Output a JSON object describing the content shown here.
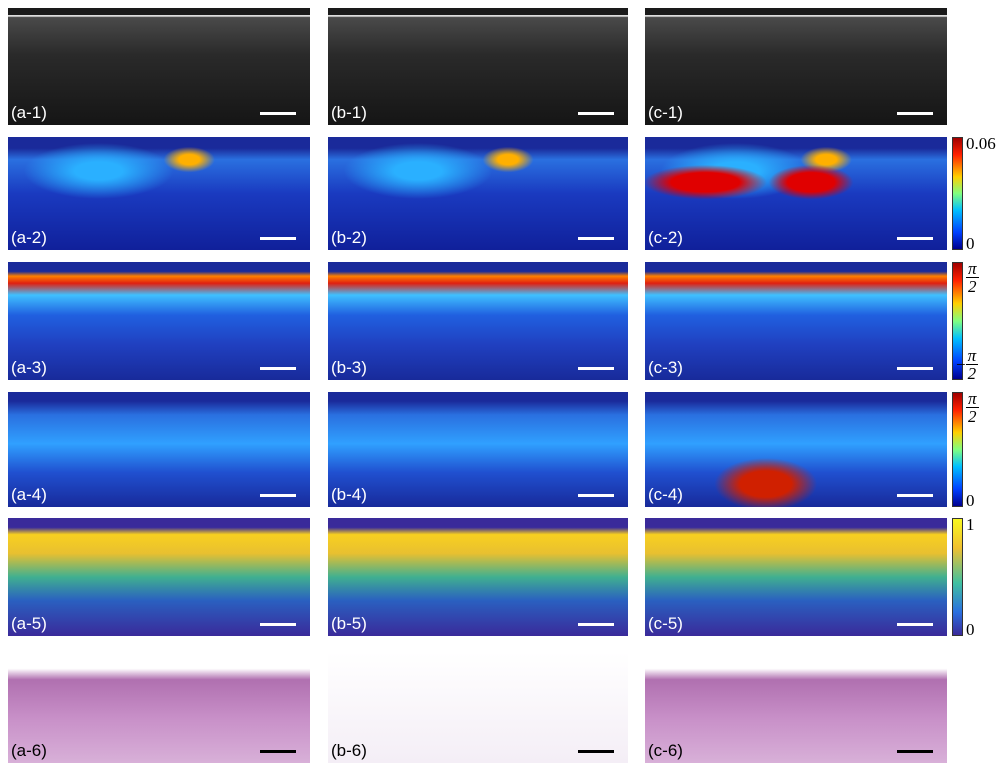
{
  "panels": [
    [
      "(a-1)",
      "(b-1)",
      "(c-1)"
    ],
    [
      "(a-2)",
      "(b-2)",
      "(c-2)"
    ],
    [
      "(a-3)",
      "(b-3)",
      "(c-3)"
    ],
    [
      "(a-4)",
      "(b-4)",
      "(c-4)"
    ],
    [
      "(a-5)",
      "(b-5)",
      "(c-5)"
    ],
    [
      "(a-6)",
      "(b-6)",
      "(c-6)"
    ]
  ],
  "colorbars": [
    {
      "top": "0.06",
      "bottom": "0"
    },
    {
      "top": {
        "num": "π",
        "den": "2"
      },
      "bottom": {
        "sign": "−",
        "num": "π",
        "den": "2"
      }
    },
    {
      "top": {
        "num": "π",
        "den": "2"
      },
      "bottom": "0"
    },
    {
      "top": "1",
      "bottom": "0"
    }
  ]
}
